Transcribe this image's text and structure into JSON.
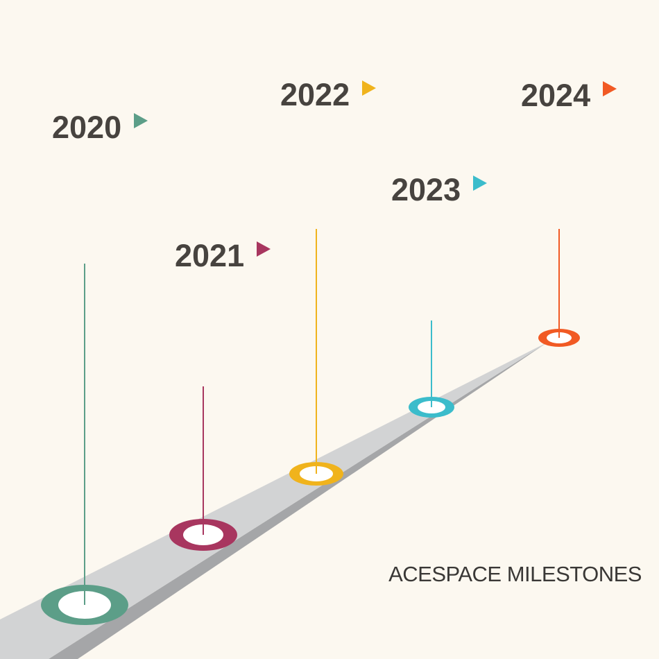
{
  "title": "ACESPACE MILESTONES",
  "colors": {
    "background": "#fcf8f0",
    "road_top": "#d2d3d4",
    "road_side": "#a5a6a8",
    "text": "#47433f"
  },
  "milestones": [
    {
      "year": "2020",
      "color": "#5c9e88"
    },
    {
      "year": "2021",
      "color": "#a8365f"
    },
    {
      "year": "2022",
      "color": "#f0b31c"
    },
    {
      "year": "2023",
      "color": "#3bbccb"
    },
    {
      "year": "2024",
      "color": "#f15a24"
    }
  ]
}
